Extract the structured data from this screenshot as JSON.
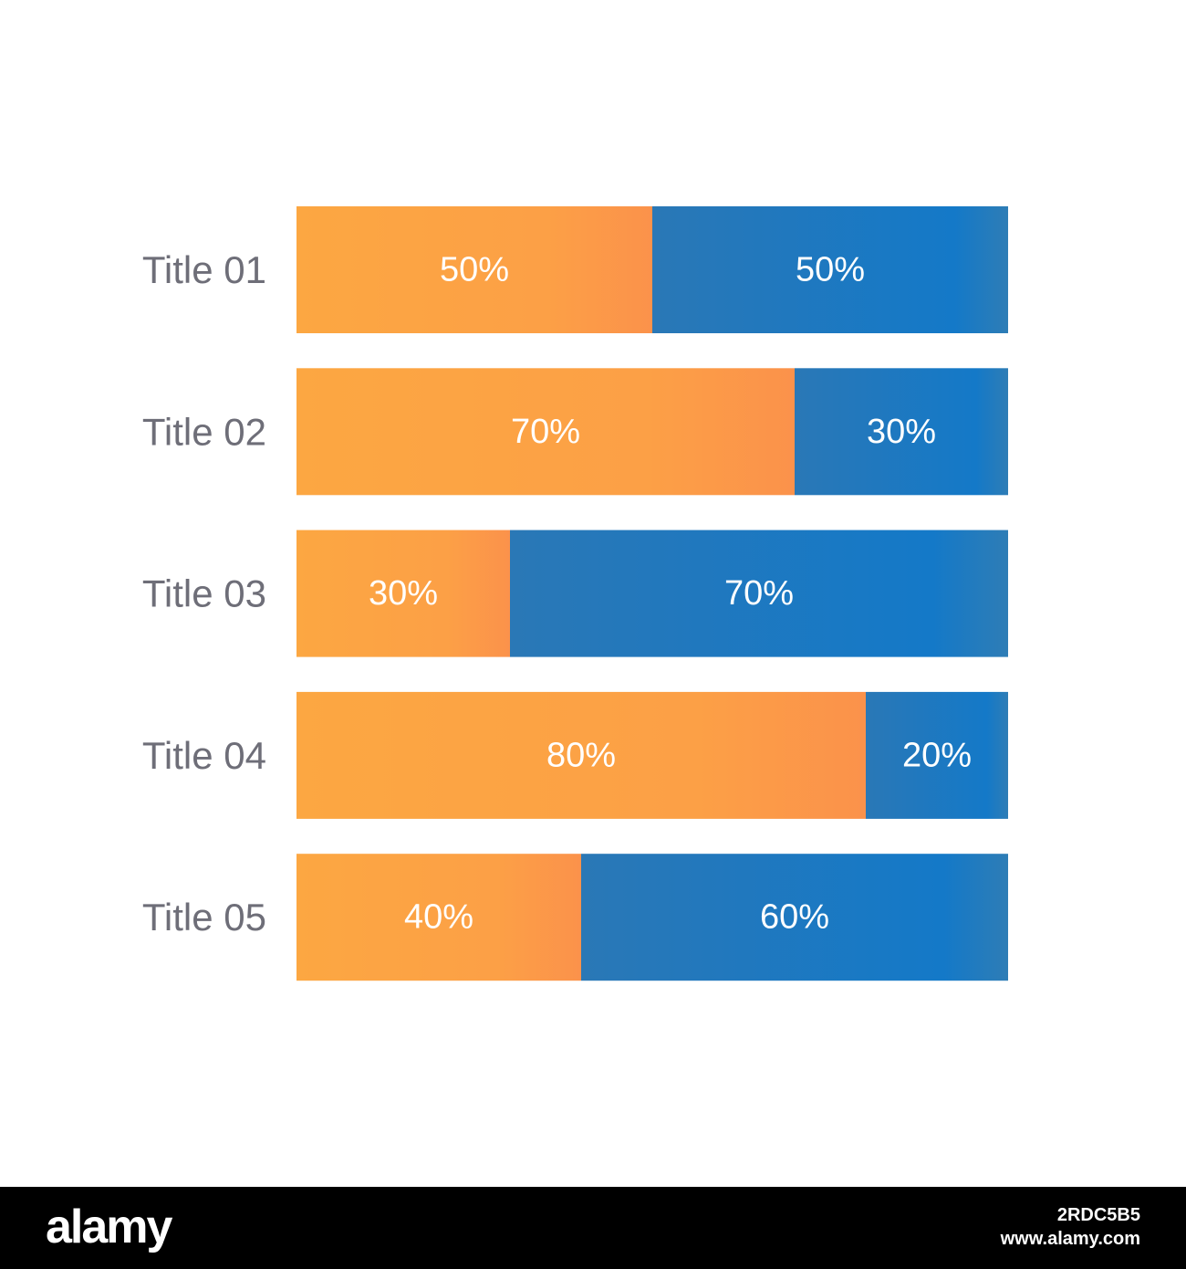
{
  "chart_data": {
    "type": "bar",
    "orientation": "horizontal",
    "stacked": true,
    "categories": [
      "Title 01",
      "Title 02",
      "Title 03",
      "Title 04",
      "Title 05"
    ],
    "series": [
      {
        "values": [
          50,
          70,
          30,
          80,
          40
        ],
        "labels": [
          "50%",
          "70%",
          "30%",
          "80%",
          "40%"
        ],
        "color": "#FBA444"
      },
      {
        "values": [
          50,
          30,
          70,
          20,
          60
        ],
        "labels": [
          "50%",
          "30%",
          "70%",
          "20%",
          "60%"
        ],
        "color": "#1F7BBF"
      }
    ],
    "xlim": [
      0,
      100
    ],
    "grid": false,
    "legend": "none",
    "title": "",
    "xlabel": "",
    "ylabel": ""
  },
  "colors": {
    "category_label": "#6E6E78",
    "value_label": "#FFFFFF",
    "orange_light": "#FCA742",
    "orange_dark": "#FB924B",
    "blue_light": "#2A78B6",
    "blue_dark": "#1479C8"
  },
  "footer": {
    "logo_text": "alamy",
    "image_code": "2RDC5B5",
    "site": "www.alamy.com"
  }
}
